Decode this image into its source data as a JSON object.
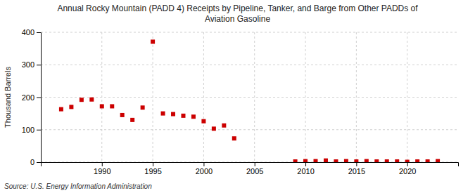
{
  "chart_data": {
    "type": "scatter",
    "title": "Annual Rocky Mountain (PADD 4) Receipts by Pipeline, Tanker, and Barge from Other PADDs of\nAviation Gasoline",
    "ylabel": "Thousand Barrels",
    "source": "Source: U.S. Energy Information Administration",
    "x": [
      1986,
      1987,
      1988,
      1989,
      1990,
      1991,
      1992,
      1993,
      1994,
      1995,
      1996,
      1997,
      1998,
      1999,
      2000,
      2001,
      2002,
      2003,
      2009,
      2010,
      2011,
      2012,
      2013,
      2014,
      2015,
      2016,
      2017,
      2018,
      2019,
      2020,
      2021,
      2022,
      2023
    ],
    "values": [
      163,
      170,
      192,
      193,
      172,
      172,
      145,
      130,
      168,
      371,
      150,
      148,
      143,
      140,
      126,
      103,
      113,
      73,
      2,
      3,
      3,
      5,
      2,
      3,
      2,
      3,
      2,
      2,
      2,
      1,
      2,
      2,
      3
    ],
    "color": "#cc0000",
    "marker": "square",
    "xlim": [
      1984,
      2025
    ],
    "ylim": [
      0,
      400
    ],
    "xticks": [
      1990,
      1995,
      2000,
      2005,
      2010,
      2015,
      2020
    ],
    "yticks": [
      0,
      100,
      200,
      300,
      400
    ],
    "grid": true
  }
}
